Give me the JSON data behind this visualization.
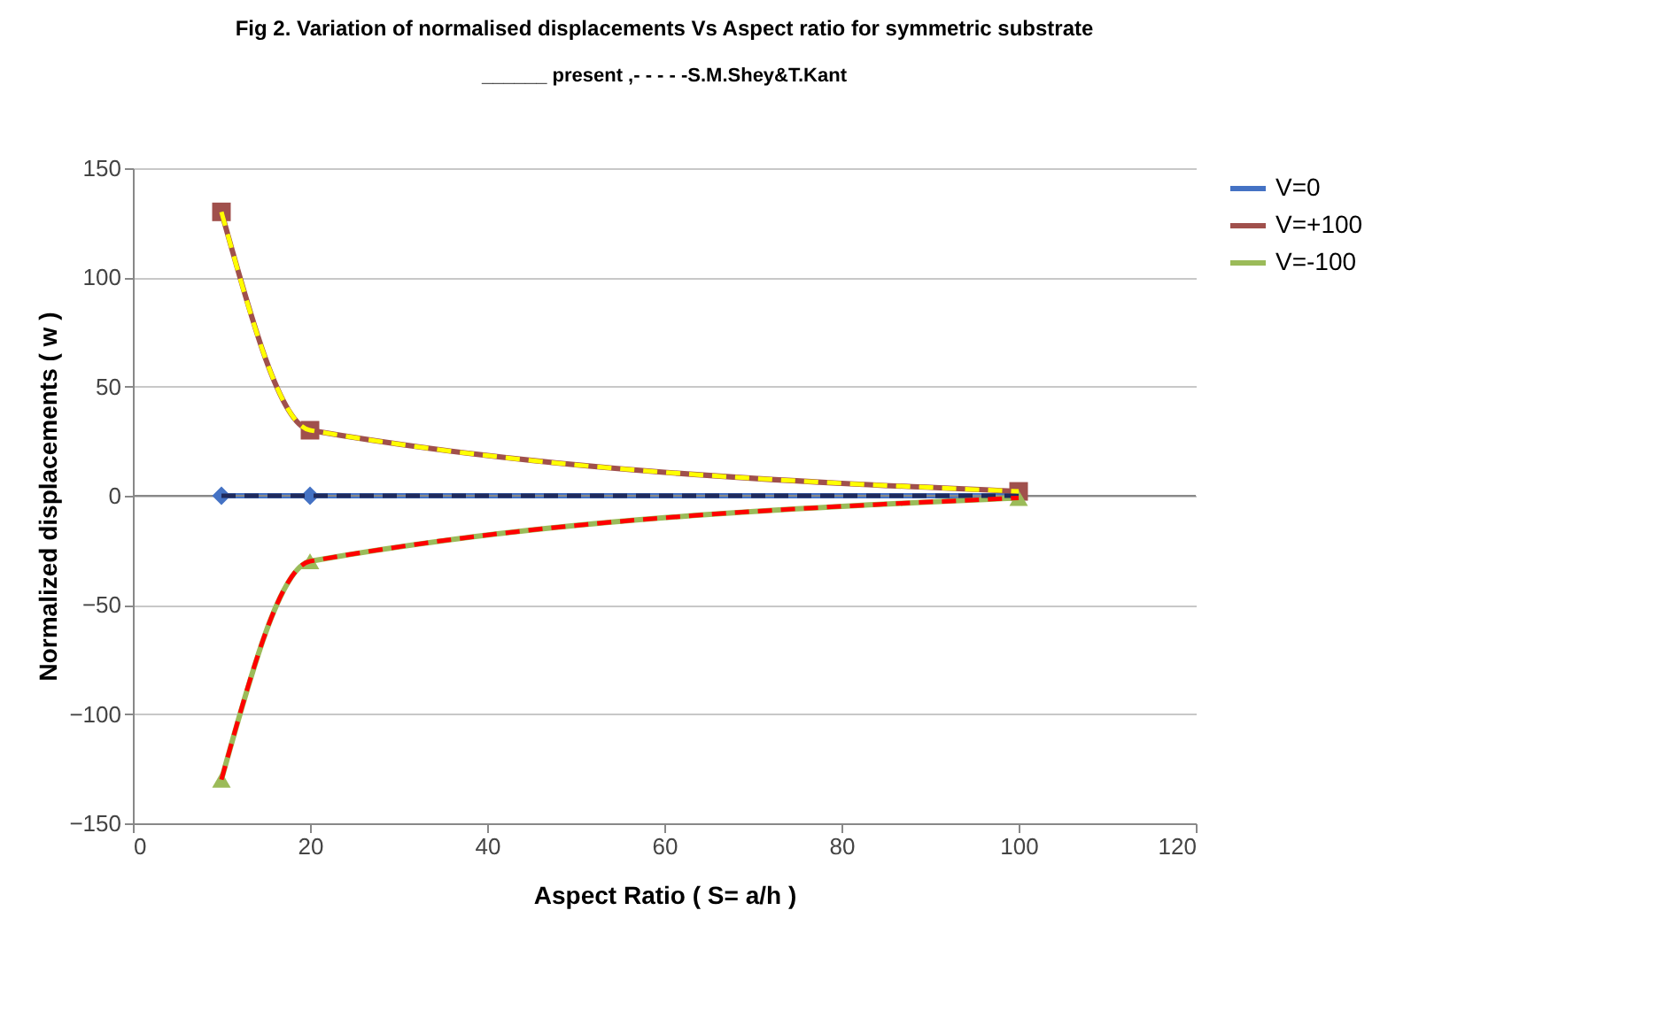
{
  "chart_data": {
    "type": "line",
    "title": "Fig 2. Variation of normalised displacements  Vs Aspect ratio for  symmetric substrate",
    "subtitle": "______  present ,- - - - -S.M.Shey&T.Kant",
    "xlabel": "Aspect Ratio  ( S= a/h )",
    "ylabel": "Normalized displacements  ( w )",
    "x": [
      10,
      20,
      100
    ],
    "series": [
      {
        "name": "V=0",
        "color": "#4472c4",
        "values": [
          0,
          0,
          0
        ],
        "marker": "diamond",
        "line_style": "solid"
      },
      {
        "name": "V=+100",
        "color": "#a0504c",
        "values": [
          130,
          30,
          2
        ],
        "marker": "square",
        "line_style": "solid"
      },
      {
        "name": "V=-100",
        "color": "#9bbb59",
        "values": [
          -130,
          -30,
          -1
        ],
        "marker": "triangle",
        "line_style": "solid"
      },
      {
        "color": "#1f2a5c",
        "values": [
          0,
          0,
          0
        ],
        "marker": "none",
        "line_style": "dashed"
      },
      {
        "color": "#ffff00",
        "values": [
          130,
          30,
          2
        ],
        "marker": "none",
        "line_style": "dashed"
      },
      {
        "color": "#ff0000",
        "values": [
          -130,
          -30,
          -1
        ],
        "marker": "none",
        "line_style": "dashed"
      }
    ],
    "xlim": [
      0,
      120
    ],
    "xticks": [
      0,
      20,
      40,
      60,
      80,
      100,
      120
    ],
    "ylim": [
      -150,
      150
    ],
    "yticks": [
      -150,
      -100,
      -50,
      0,
      50,
      100,
      150
    ],
    "ref_lines": [
      {
        "axis": "y",
        "value": 0,
        "color": "#888888"
      }
    ],
    "grid": "y",
    "legend": "right"
  }
}
